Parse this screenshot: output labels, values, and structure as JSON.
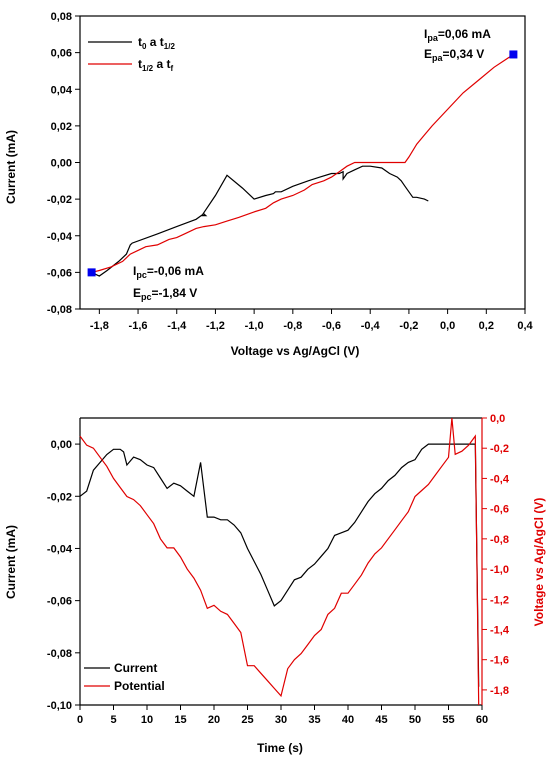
{
  "chart_data": [
    {
      "type": "line",
      "xlabel": "Voltage vs Ag/AgCl (V)",
      "ylabel": "Current (mA)",
      "xlim": [
        -1.9,
        0.4
      ],
      "ylim": [
        -0.08,
        0.08
      ],
      "xticks": [
        -1.8,
        -1.6,
        -1.4,
        -1.2,
        -1.0,
        -0.8,
        -0.6,
        -0.4,
        -0.2,
        0.0,
        0.2,
        0.4
      ],
      "xtick_labels": [
        "-1,8",
        "-1,6",
        "-1,4",
        "-1,2",
        "-1,0",
        "-0,8",
        "-0,6",
        "-0,4",
        "-0,2",
        "0,0",
        "0,2",
        "0,4"
      ],
      "yticks": [
        -0.08,
        -0.06,
        -0.04,
        -0.02,
        0.0,
        0.02,
        0.04,
        0.06,
        0.08
      ],
      "ytick_labels": [
        "-0,08",
        "-0,06",
        "-0,04",
        "-0,02",
        "0,00",
        "0,02",
        "0,04",
        "0,06",
        "0,08"
      ],
      "legend_position": "top-left",
      "series": [
        {
          "name_main": "t",
          "name_sub1": "0",
          "name_mid": " a t",
          "name_sub2": "1/2",
          "color": "#000000",
          "x": [
            -1.84,
            -1.8,
            -1.76,
            -1.7,
            -1.66,
            -1.64,
            -1.63,
            -1.5,
            -1.4,
            -1.35,
            -1.3,
            -1.26,
            -1.25,
            -1.27,
            -1.2,
            -1.14,
            -1.06,
            -1.0,
            -0.94,
            -0.9,
            -0.89,
            -0.86,
            -0.8,
            -0.72,
            -0.66,
            -0.6,
            -0.56,
            -0.54,
            -0.54,
            -0.52,
            -0.48,
            -0.44,
            -0.4,
            -0.34,
            -0.3,
            -0.26,
            -0.24,
            -0.22,
            -0.2,
            -0.18,
            -0.16,
            -0.12,
            -0.1
          ],
          "y": [
            -0.06,
            -0.062,
            -0.059,
            -0.054,
            -0.05,
            -0.045,
            -0.044,
            -0.039,
            -0.035,
            -0.033,
            -0.031,
            -0.028,
            -0.029,
            -0.029,
            -0.018,
            -0.007,
            -0.014,
            -0.02,
            -0.018,
            -0.017,
            -0.016,
            -0.016,
            -0.013,
            -0.01,
            -0.008,
            -0.006,
            -0.006,
            -0.005,
            -0.009,
            -0.006,
            -0.004,
            -0.002,
            -0.002,
            -0.003,
            -0.006,
            -0.008,
            -0.01,
            -0.013,
            -0.016,
            -0.019,
            -0.019,
            -0.02,
            -0.021
          ]
        },
        {
          "name_main": "t",
          "name_sub1": "1/2",
          "name_mid": " a t",
          "name_sub2": "f",
          "color": "#e00000",
          "x": [
            -1.84,
            -1.8,
            -1.74,
            -1.68,
            -1.64,
            -1.6,
            -1.56,
            -1.5,
            -1.44,
            -1.4,
            -1.36,
            -1.3,
            -1.26,
            -1.2,
            -1.14,
            -1.08,
            -1.0,
            -0.94,
            -0.9,
            -0.86,
            -0.8,
            -0.74,
            -0.7,
            -0.64,
            -0.6,
            -0.56,
            -0.52,
            -0.48,
            -0.44,
            -0.4,
            -0.36,
            -0.3,
            -0.26,
            -0.22,
            -0.2,
            -0.16,
            -0.12,
            -0.08,
            0.0,
            0.08,
            0.16,
            0.24,
            0.34
          ],
          "y": [
            -0.06,
            -0.059,
            -0.057,
            -0.054,
            -0.05,
            -0.048,
            -0.046,
            -0.045,
            -0.042,
            -0.041,
            -0.039,
            -0.036,
            -0.035,
            -0.034,
            -0.032,
            -0.03,
            -0.027,
            -0.025,
            -0.022,
            -0.02,
            -0.018,
            -0.015,
            -0.012,
            -0.01,
            -0.008,
            -0.005,
            -0.002,
            0.0,
            0.0,
            0.0,
            0.0,
            0.0,
            0.0,
            0.0,
            0.003,
            0.01,
            0.015,
            0.02,
            0.029,
            0.038,
            0.045,
            0.052,
            0.059
          ]
        }
      ],
      "markers": [
        {
          "x": -1.84,
          "y": -0.06,
          "color": "#0000ee"
        },
        {
          "x": 0.34,
          "y": 0.059,
          "color": "#0000ee"
        }
      ],
      "annotations": {
        "ipa_main": "I",
        "ipa_sub": "pa",
        "ipa_value": "=0,06 mA",
        "epa_main": "E",
        "epa_sub": "pa",
        "epa_value": "=0,34 V",
        "ipc_main": "I",
        "ipc_sub": "pc",
        "ipc_value": "=-0,06 mA",
        "epc_main": "E",
        "epc_sub": "pc",
        "epc_value": "=-1,84 V"
      }
    },
    {
      "type": "line",
      "xlabel": "Time (s)",
      "ylabel": "Current (mA)",
      "y2label": "Voltage vs Ag/AgCl (V)",
      "xlim": [
        0,
        60
      ],
      "ylim": [
        -0.1,
        0.01
      ],
      "y2lim": [
        -1.9,
        0.0
      ],
      "xticks": [
        0,
        5,
        10,
        15,
        20,
        25,
        30,
        35,
        40,
        45,
        50,
        55,
        60
      ],
      "xtick_labels": [
        "0",
        "5",
        "10",
        "15",
        "20",
        "25",
        "30",
        "35",
        "40",
        "45",
        "50",
        "55",
        "60"
      ],
      "yticks": [
        -0.1,
        -0.08,
        -0.06,
        -0.04,
        -0.02,
        0.0
      ],
      "ytick_labels": [
        "-0,10",
        "-0,08",
        "-0,06",
        "-0,04",
        "-0,02",
        "0,00"
      ],
      "y2ticks": [
        -1.8,
        -1.6,
        -1.4,
        -1.2,
        -1.0,
        -0.8,
        -0.6,
        -0.4,
        -0.2,
        0.0
      ],
      "y2tick_labels": [
        "-1,8",
        "-1,6",
        "-1,4",
        "-1,2",
        "-1,0",
        "-0,8",
        "-0,6",
        "-0,4",
        "-0,2",
        "0,0"
      ],
      "legend_position": "bottom-left",
      "series": [
        {
          "name": "Current",
          "color": "#000000",
          "axis": "left",
          "x": [
            0,
            1,
            2,
            3,
            4,
            5,
            6,
            6.5,
            7,
            8,
            9,
            10,
            11,
            12,
            13,
            14,
            15,
            16,
            17,
            18,
            19,
            20,
            21,
            22,
            23,
            24,
            25,
            26,
            27,
            28,
            29,
            30,
            31,
            32,
            33,
            34,
            35,
            36,
            37,
            38,
            39,
            40,
            41,
            42,
            43,
            44,
            45,
            46,
            47,
            48,
            49,
            50,
            51,
            52,
            53,
            54,
            55,
            56,
            57,
            58,
            59,
            59.5
          ],
          "y": [
            -0.02,
            -0.018,
            -0.01,
            -0.007,
            -0.004,
            -0.002,
            -0.002,
            -0.003,
            -0.008,
            -0.005,
            -0.006,
            -0.008,
            -0.009,
            -0.013,
            -0.017,
            -0.015,
            -0.016,
            -0.018,
            -0.02,
            -0.007,
            -0.028,
            -0.028,
            -0.029,
            -0.029,
            -0.031,
            -0.034,
            -0.04,
            -0.045,
            -0.05,
            -0.056,
            -0.062,
            -0.06,
            -0.056,
            -0.052,
            -0.051,
            -0.048,
            -0.046,
            -0.043,
            -0.04,
            -0.035,
            -0.034,
            -0.033,
            -0.03,
            -0.026,
            -0.022,
            -0.019,
            -0.017,
            -0.014,
            -0.012,
            -0.009,
            -0.007,
            -0.006,
            -0.002,
            0.0,
            0.0,
            0.0,
            0.0,
            0.0,
            0.0,
            0.0,
            0.0,
            -0.093
          ]
        },
        {
          "name": "Potential",
          "color": "#e00000",
          "axis": "right",
          "x": [
            0,
            1,
            2,
            3,
            4,
            5,
            6,
            7,
            8,
            9,
            10,
            11,
            12,
            13,
            14,
            15,
            16,
            17,
            18,
            19,
            20,
            21,
            22,
            23,
            24,
            25,
            26,
            27,
            28,
            29,
            30,
            31,
            32,
            33,
            34,
            35,
            36,
            37,
            38,
            39,
            40,
            41,
            42,
            43,
            44,
            45,
            46,
            47,
            48,
            49,
            50,
            51,
            52,
            53,
            54,
            55,
            55.5,
            56,
            57,
            58,
            59,
            59.5
          ],
          "y": [
            -0.12,
            -0.18,
            -0.2,
            -0.26,
            -0.32,
            -0.4,
            -0.46,
            -0.52,
            -0.54,
            -0.58,
            -0.64,
            -0.7,
            -0.8,
            -0.86,
            -0.86,
            -0.92,
            -1.0,
            -1.06,
            -1.14,
            -1.26,
            -1.24,
            -1.28,
            -1.3,
            -1.36,
            -1.42,
            -1.64,
            -1.64,
            -1.69,
            -1.74,
            -1.79,
            -1.84,
            -1.66,
            -1.6,
            -1.56,
            -1.5,
            -1.44,
            -1.4,
            -1.3,
            -1.26,
            -1.16,
            -1.16,
            -1.1,
            -1.04,
            -0.96,
            -0.9,
            -0.86,
            -0.8,
            -0.74,
            -0.68,
            -0.62,
            -0.52,
            -0.48,
            -0.44,
            -0.38,
            -0.32,
            -0.26,
            0.0,
            -0.24,
            -0.22,
            -0.18,
            -0.12,
            -1.9
          ]
        }
      ]
    }
  ]
}
